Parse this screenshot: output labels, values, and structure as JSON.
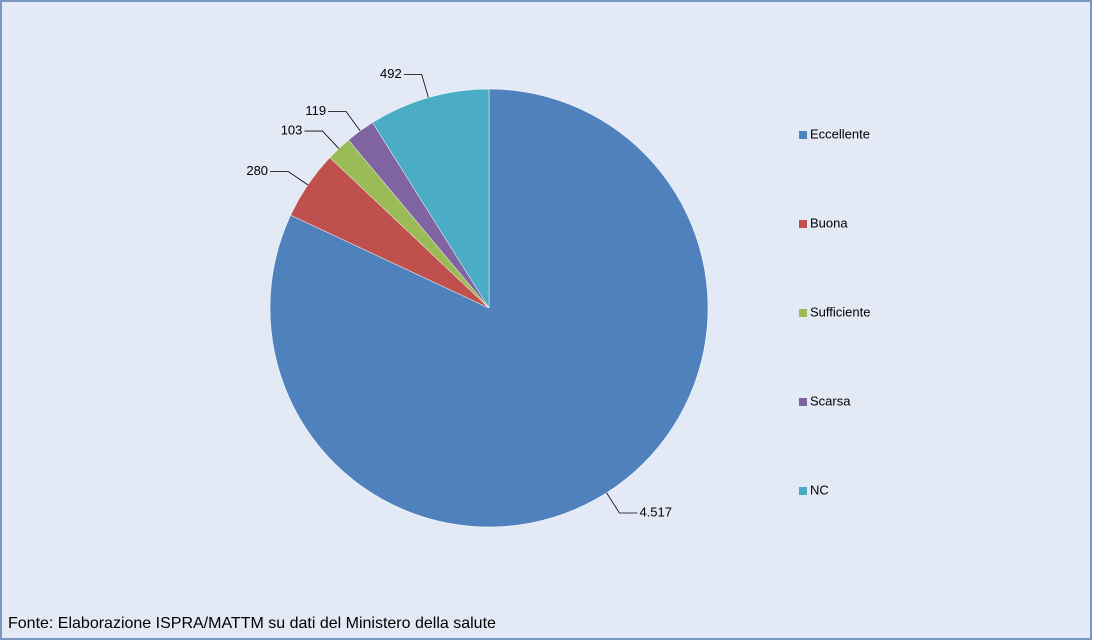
{
  "chart_data": {
    "type": "pie",
    "categories": [
      "Eccellente",
      "Buona",
      "Sufficiente",
      "Scarsa",
      "NC"
    ],
    "values": [
      4517,
      280,
      103,
      119,
      492
    ],
    "value_labels": [
      "4.517",
      "280",
      "103",
      "119",
      "492"
    ],
    "colors": [
      "#4f81bd",
      "#c0504d",
      "#9bbb59",
      "#8064a2",
      "#4bacc6"
    ],
    "legend": "right",
    "source": "Fonte: Elaborazione ISPRA/MATTM su dati del Ministero della salute"
  }
}
